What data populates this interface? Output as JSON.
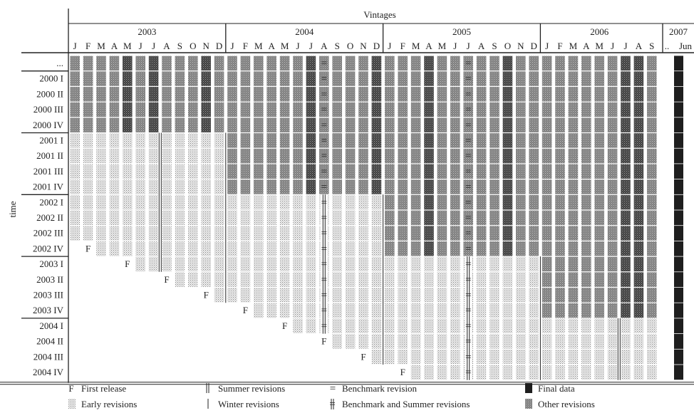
{
  "chart_data": {
    "type": "heatmap",
    "title": "Vintages",
    "ylabel": "time",
    "year_labels": [
      "2003",
      "2004",
      "2005",
      "2006",
      "2007"
    ],
    "year_month_counts": [
      12,
      12,
      12,
      9,
      1
    ],
    "month_labels": [
      "J",
      "F",
      "M",
      "A",
      "M",
      "J",
      "J",
      "A",
      "S",
      "O",
      "N",
      "D",
      "J",
      "F",
      "M",
      "A",
      "M",
      "J",
      "J",
      "A",
      "S",
      "O",
      "N",
      "D",
      "J",
      "F",
      "M",
      "A",
      "M",
      "J",
      "J",
      "A",
      "S",
      "O",
      "N",
      "D",
      "J",
      "F",
      "M",
      "A",
      "M",
      "J",
      "J",
      "A",
      "S"
    ],
    "ellipsis_label": "..",
    "last_vintage_label": "Jun",
    "row_labels": [
      "...",
      "2000 I",
      "2000 II",
      "2000 III",
      "2000 IV",
      "2001 I",
      "2001 II",
      "2001 III",
      "2001 IV",
      "2002 I",
      "2002 II",
      "2002 III",
      "2002 IV",
      "2003 I",
      "2003 II",
      "2003 III",
      "2003 IV",
      "2004 I",
      "2004 II",
      "2004 III",
      "2004 IV"
    ],
    "first_release_col": {
      "2002 IV": 1,
      "2003 I": 4,
      "2003 II": 7,
      "2003 III": 10,
      "2003 IV": 13,
      "2004 I": 16,
      "2004 II": 19,
      "2004 III": 22,
      "2004 IV": 25
    },
    "other_revisions_start_col": {
      "...": 0,
      "2000 I": 0,
      "2000 II": 0,
      "2000 III": 0,
      "2000 IV": 0,
      "2001 I": 12,
      "2001 II": 12,
      "2001 III": 12,
      "2001 IV": 12,
      "2002 I": 24,
      "2002 II": 24,
      "2002 III": 24,
      "2002 IV": 24,
      "2003 I": 36,
      "2003 II": 36,
      "2003 III": 36,
      "2003 IV": 36
    },
    "final_data_col": "Jun",
    "revision_events": [
      {
        "col": 7,
        "type": "summer",
        "rows": [
          "2001 I",
          "2003 I"
        ]
      },
      {
        "col": 12,
        "type": "winter",
        "rows": [
          "2001 I",
          "2003 III"
        ]
      },
      {
        "col": 19,
        "type": "benchmark",
        "rows": [
          "...",
          "2001 IV"
        ]
      },
      {
        "col": 19,
        "type": "benchmark_summer",
        "rows": [
          "2002 I",
          "2004 I"
        ]
      },
      {
        "col": 24,
        "type": "winter",
        "rows": [
          "2002 I",
          "2004 III"
        ]
      },
      {
        "col": 30,
        "type": "benchmark",
        "rows": [
          "...",
          "2002 IV"
        ]
      },
      {
        "col": 30,
        "type": "benchmark_summer",
        "rows": [
          "2003 I",
          "2004 IV"
        ]
      },
      {
        "col": 36,
        "type": "winter",
        "rows": [
          "2003 I",
          "2004 IV"
        ]
      },
      {
        "col": 42,
        "type": "summer",
        "rows": [
          "2004 I",
          "2004 IV"
        ]
      }
    ],
    "dark_columns": [
      4,
      6,
      10,
      18,
      23,
      27,
      33,
      43,
      42
    ],
    "legend": [
      {
        "symbol": "F",
        "label": "First release"
      },
      {
        "symbol": "summer",
        "label": "Summer revisions"
      },
      {
        "symbol": "benchmark",
        "label": "Benchmark revision"
      },
      {
        "symbol": "final",
        "label": "Final data"
      },
      {
        "symbol": "early",
        "label": "Early revisions"
      },
      {
        "symbol": "winter",
        "label": "Winter revisions"
      },
      {
        "symbol": "benchmark_summer",
        "label": "Benchmark and Summer revisions"
      },
      {
        "symbol": "other",
        "label": "Other revisions"
      }
    ],
    "colors": {
      "early": "#d8d8d8",
      "other": "#8c8c8c",
      "dark": "#4a4a4a",
      "final": "#1e1e1e",
      "line": "#222222"
    },
    "grid": false,
    "legend_position": "bottom"
  }
}
